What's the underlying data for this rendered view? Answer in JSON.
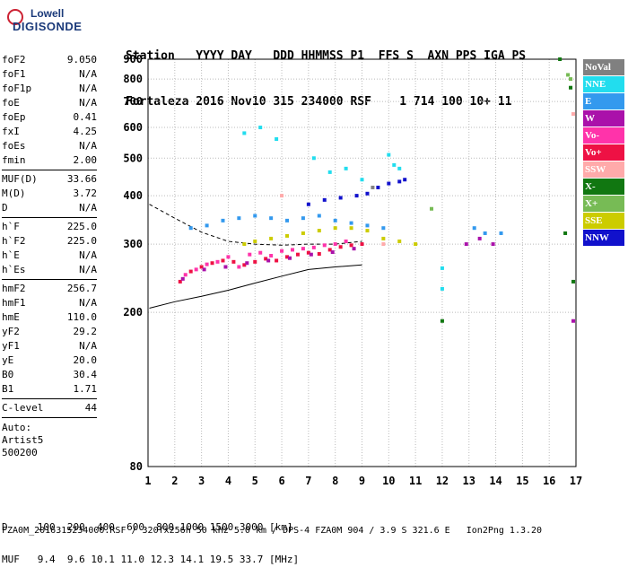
{
  "logo": {
    "brand_line1": "Lowell",
    "brand_line2": "DIGISONDE"
  },
  "header": {
    "labels": "Station   YYYY DAY   DDD HHMMSS P1  FFS S  AXN PPS IGA PS",
    "values": "Fortaleza 2016 Nov10 315 234000 RSF    1 714 100 10+ 11"
  },
  "params": {
    "group1": [
      {
        "name": "foF2",
        "value": "9.050"
      },
      {
        "name": "foF1",
        "value": "N/A"
      },
      {
        "name": "foF1p",
        "value": "N/A"
      },
      {
        "name": "foE",
        "value": "N/A"
      },
      {
        "name": "foEp",
        "value": "0.41"
      },
      {
        "name": "fxI",
        "value": "4.25"
      },
      {
        "name": "foEs",
        "value": "N/A"
      },
      {
        "name": "fmin",
        "value": "2.00"
      }
    ],
    "group2": [
      {
        "name": "MUF(D)",
        "value": "33.66"
      },
      {
        "name": "M(D)",
        "value": "3.72"
      },
      {
        "name": "D",
        "value": "N/A"
      }
    ],
    "group3": [
      {
        "name": "h`F",
        "value": "225.0"
      },
      {
        "name": "h`F2",
        "value": "225.0"
      },
      {
        "name": "h`E",
        "value": "N/A"
      },
      {
        "name": "h`Es",
        "value": "N/A"
      }
    ],
    "group4": [
      {
        "name": "hmF2",
        "value": "256.7"
      },
      {
        "name": "hmF1",
        "value": "N/A"
      },
      {
        "name": "hmE",
        "value": "110.0"
      },
      {
        "name": "yF2",
        "value": "29.2"
      },
      {
        "name": "yF1",
        "value": "N/A"
      },
      {
        "name": "yE",
        "value": "20.0"
      },
      {
        "name": "B0",
        "value": "30.4"
      },
      {
        "name": "B1",
        "value": "1.71"
      }
    ],
    "group5": [
      {
        "name": "C-level",
        "value": "44"
      }
    ],
    "auto": {
      "line1": "Auto:",
      "line2": "Artist5",
      "line3": "500200"
    }
  },
  "legend": [
    {
      "label": "NoVal",
      "color": "#808080"
    },
    {
      "label": "NNE",
      "color": "#22ddee"
    },
    {
      "label": "E",
      "color": "#3399ee"
    },
    {
      "label": "W",
      "color": "#aa11aa"
    },
    {
      "label": "Vo-",
      "color": "#ff33aa"
    },
    {
      "label": "Vo+",
      "color": "#ee1144"
    },
    {
      "label": "SSW",
      "color": "#ffaaaa"
    },
    {
      "label": "X-",
      "color": "#117711"
    },
    {
      "label": "X+",
      "color": "#77bb55"
    },
    {
      "label": "SSE",
      "color": "#cccc00"
    },
    {
      "label": "NNW",
      "color": "#1111cc"
    }
  ],
  "footer": {
    "d_row": "D     100  200  400  600  800 1000 1500 3000 [km]",
    "muf_row": "MUF   9.4  9.6 10.1 11.0 12.3 14.1 19.5 33.7 [MHz]",
    "file_row": "FZA0M_2016315234000.RSF / 320fx256h 50 kHz 5.0 km / DPS-4 FZA0M 904 / 3.9 S 321.6 E   Ion2Png 1.3.20"
  },
  "chart_data": {
    "type": "scatter",
    "title": "",
    "xlabel": "",
    "ylabel": "",
    "xlim": [
      1,
      17
    ],
    "ylim": [
      80,
      900
    ],
    "x_scale": "linear",
    "y_scale": "log",
    "x_ticks": [
      1,
      2,
      3,
      4,
      5,
      6,
      7,
      8,
      9,
      10,
      11,
      12,
      13,
      14,
      15,
      16,
      17
    ],
    "y_ticks": [
      80,
      200,
      300,
      400,
      500,
      600,
      700,
      800,
      900
    ],
    "grid": true,
    "legend_position": "right",
    "series": [
      {
        "name": "Vo+",
        "color": "#ee1144",
        "points": [
          [
            2.2,
            240
          ],
          [
            2.6,
            255
          ],
          [
            3.0,
            262
          ],
          [
            3.4,
            268
          ],
          [
            3.8,
            272
          ],
          [
            4.2,
            270
          ],
          [
            4.6,
            265
          ],
          [
            5.0,
            270
          ],
          [
            5.4,
            275
          ],
          [
            5.8,
            272
          ],
          [
            6.2,
            278
          ],
          [
            6.6,
            282
          ],
          [
            7.0,
            285
          ],
          [
            7.4,
            283
          ],
          [
            7.8,
            290
          ],
          [
            8.2,
            295
          ],
          [
            8.6,
            298
          ],
          [
            9.0,
            300
          ]
        ]
      },
      {
        "name": "Vo-",
        "color": "#ff33aa",
        "points": [
          [
            2.4,
            250
          ],
          [
            2.8,
            258
          ],
          [
            3.2,
            266
          ],
          [
            3.6,
            270
          ],
          [
            4.0,
            278
          ],
          [
            4.4,
            262
          ],
          [
            4.8,
            282
          ],
          [
            5.2,
            285
          ],
          [
            5.6,
            280
          ],
          [
            6.0,
            288
          ],
          [
            6.4,
            290
          ],
          [
            6.8,
            292
          ],
          [
            7.2,
            294
          ],
          [
            7.6,
            298
          ],
          [
            8.0,
            300
          ],
          [
            8.4,
            305
          ]
        ]
      },
      {
        "name": "W",
        "color": "#aa11aa",
        "points": [
          [
            2.3,
            244
          ],
          [
            3.1,
            258
          ],
          [
            3.9,
            262
          ],
          [
            4.7,
            268
          ],
          [
            5.5,
            272
          ],
          [
            6.3,
            276
          ],
          [
            7.1,
            282
          ],
          [
            7.9,
            286
          ],
          [
            8.7,
            292
          ],
          [
            12.9,
            300
          ],
          [
            13.4,
            310
          ],
          [
            13.9,
            300
          ],
          [
            16.9,
            190
          ]
        ]
      },
      {
        "name": "SSE",
        "color": "#cccc00",
        "points": [
          [
            4.6,
            300
          ],
          [
            5.0,
            305
          ],
          [
            5.6,
            310
          ],
          [
            6.2,
            315
          ],
          [
            6.8,
            320
          ],
          [
            7.4,
            325
          ],
          [
            8.0,
            330
          ],
          [
            8.6,
            330
          ],
          [
            9.2,
            325
          ],
          [
            9.8,
            310
          ],
          [
            10.4,
            305
          ],
          [
            11.0,
            300
          ]
        ]
      },
      {
        "name": "E",
        "color": "#3399ee",
        "points": [
          [
            2.6,
            330
          ],
          [
            3.2,
            335
          ],
          [
            3.8,
            345
          ],
          [
            4.4,
            350
          ],
          [
            5.0,
            355
          ],
          [
            5.6,
            350
          ],
          [
            6.2,
            345
          ],
          [
            6.8,
            350
          ],
          [
            7.4,
            355
          ],
          [
            8.0,
            345
          ],
          [
            8.6,
            340
          ],
          [
            9.2,
            335
          ],
          [
            9.8,
            330
          ],
          [
            13.2,
            330
          ],
          [
            13.6,
            320
          ],
          [
            14.2,
            320
          ]
        ]
      },
      {
        "name": "NNE",
        "color": "#22ddee",
        "points": [
          [
            4.6,
            580
          ],
          [
            5.2,
            600
          ],
          [
            5.8,
            560
          ],
          [
            7.2,
            500
          ],
          [
            7.8,
            460
          ],
          [
            8.4,
            470
          ],
          [
            9.0,
            440
          ],
          [
            10.0,
            510
          ],
          [
            10.2,
            480
          ],
          [
            10.4,
            470
          ],
          [
            12.0,
            260
          ],
          [
            12.0,
            230
          ]
        ]
      },
      {
        "name": "NNW",
        "color": "#1111cc",
        "points": [
          [
            7.0,
            380
          ],
          [
            7.6,
            390
          ],
          [
            8.2,
            395
          ],
          [
            8.8,
            400
          ],
          [
            9.2,
            405
          ],
          [
            9.6,
            420
          ],
          [
            10.0,
            430
          ],
          [
            10.4,
            435
          ],
          [
            10.6,
            440
          ]
        ]
      },
      {
        "name": "X-",
        "color": "#117711",
        "points": [
          [
            12.0,
            190
          ],
          [
            16.4,
            900
          ],
          [
            16.8,
            760
          ],
          [
            16.6,
            320
          ],
          [
            16.9,
            240
          ]
        ]
      },
      {
        "name": "X+",
        "color": "#77bb55",
        "points": [
          [
            16.7,
            820
          ],
          [
            16.8,
            800
          ],
          [
            11.6,
            370
          ]
        ]
      },
      {
        "name": "SSW",
        "color": "#ffaaaa",
        "points": [
          [
            16.9,
            650
          ],
          [
            6.0,
            400
          ],
          [
            9.8,
            300
          ]
        ]
      },
      {
        "name": "NoVal",
        "color": "#808080",
        "points": [
          [
            9.4,
            420
          ]
        ]
      }
    ],
    "trace_lines": [
      {
        "name": "profile-lower",
        "points": [
          [
            1.05,
            205
          ],
          [
            2.0,
            213
          ],
          [
            3.0,
            220
          ],
          [
            4.0,
            228
          ],
          [
            5.0,
            238
          ],
          [
            6.0,
            248
          ],
          [
            7.0,
            258
          ],
          [
            8.0,
            262
          ],
          [
            9.0,
            265
          ]
        ]
      },
      {
        "name": "profile-dashed",
        "points": [
          [
            1.05,
            380
          ],
          [
            2.0,
            350
          ],
          [
            3.0,
            322
          ],
          [
            4.0,
            305
          ],
          [
            5.0,
            300
          ],
          [
            6.0,
            298
          ],
          [
            7.0,
            300
          ],
          [
            8.0,
            300
          ],
          [
            9.0,
            305
          ]
        ]
      }
    ]
  }
}
